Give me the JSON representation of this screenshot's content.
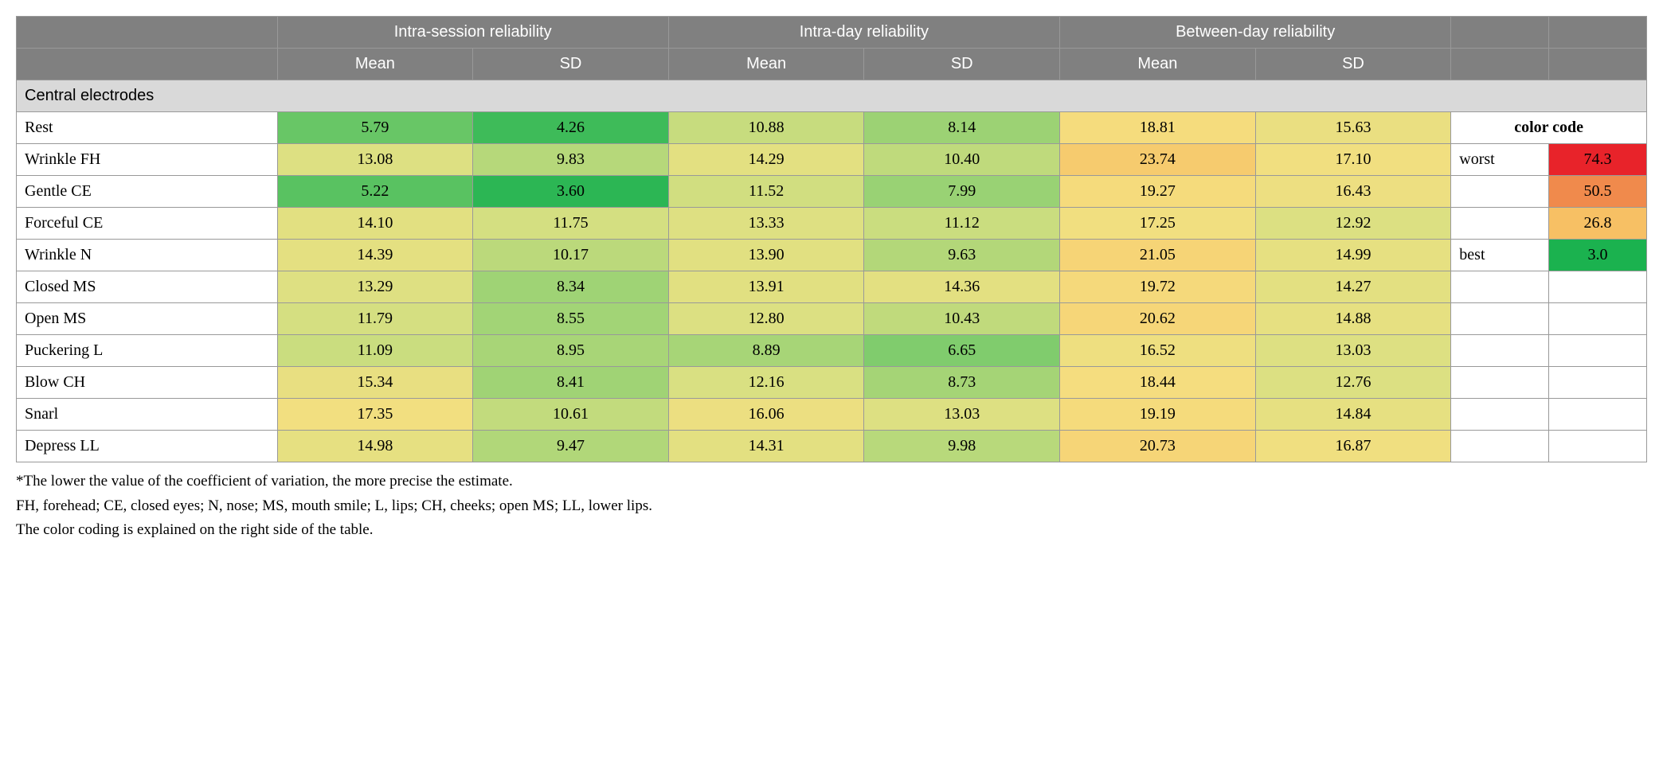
{
  "color_scale": {
    "min": 3.0,
    "max": 74.3,
    "stops": [
      {
        "at": 3.0,
        "color": "#1bb24f"
      },
      {
        "at": 7.0,
        "color": "#8ace70"
      },
      {
        "at": 12.0,
        "color": "#d8e082"
      },
      {
        "at": 18.0,
        "color": "#f5df80"
      },
      {
        "at": 26.8,
        "color": "#f7c064"
      },
      {
        "at": 50.5,
        "color": "#f08a4c"
      },
      {
        "at": 74.3,
        "color": "#e8232a"
      }
    ]
  },
  "header": {
    "groups": [
      "Intra-session reliability",
      "Intra-day reliability",
      "Between-day reliability"
    ],
    "sub": [
      "Mean",
      "SD"
    ]
  },
  "section_title": "Central electrodes",
  "rows": [
    {
      "label": "Rest",
      "vals": [
        5.79,
        4.26,
        10.88,
        8.14,
        18.81,
        15.63
      ]
    },
    {
      "label": "Wrinkle FH",
      "vals": [
        13.08,
        9.83,
        14.29,
        10.4,
        23.74,
        17.1
      ]
    },
    {
      "label": "Gentle CE",
      "vals": [
        5.22,
        3.6,
        11.52,
        7.99,
        19.27,
        16.43
      ]
    },
    {
      "label": "Forceful CE",
      "vals": [
        14.1,
        11.75,
        13.33,
        11.12,
        17.25,
        12.92
      ]
    },
    {
      "label": "Wrinkle N",
      "vals": [
        14.39,
        10.17,
        13.9,
        9.63,
        21.05,
        14.99
      ]
    },
    {
      "label": "Closed MS",
      "vals": [
        13.29,
        8.34,
        13.91,
        14.36,
        19.72,
        14.27
      ]
    },
    {
      "label": "Open MS",
      "vals": [
        11.79,
        8.55,
        12.8,
        10.43,
        20.62,
        14.88
      ]
    },
    {
      "label": "Puckering L",
      "vals": [
        11.09,
        8.95,
        8.89,
        6.65,
        16.52,
        13.03
      ]
    },
    {
      "label": "Blow CH",
      "vals": [
        15.34,
        8.41,
        12.16,
        8.73,
        18.44,
        12.76
      ]
    },
    {
      "label": "Snarl",
      "vals": [
        17.35,
        10.61,
        16.06,
        13.03,
        19.19,
        14.84
      ]
    },
    {
      "label": "Depress LL",
      "vals": [
        14.98,
        9.47,
        14.31,
        9.98,
        20.73,
        16.87
      ]
    }
  ],
  "legend": {
    "title": "color code",
    "items": [
      {
        "label": "worst",
        "value": 74.3,
        "text": "74.3"
      },
      {
        "label": "",
        "value": 50.5,
        "text": "50.5"
      },
      {
        "label": "",
        "value": 26.8,
        "text": "26.8"
      },
      {
        "label": "best",
        "value": 3.0,
        "text": "3.0"
      }
    ]
  },
  "footnotes": [
    "*The lower the value of the coefficient of variation, the more precise the estimate.",
    "FH, forehead; CE, closed eyes; N, nose; MS, mouth smile; L, lips; CH, cheeks; open MS; LL, lower lips.",
    "The color coding is explained on the right side of the table."
  ],
  "col_widths_pct": [
    16,
    12,
    12,
    12,
    12,
    12,
    12,
    6,
    6
  ]
}
